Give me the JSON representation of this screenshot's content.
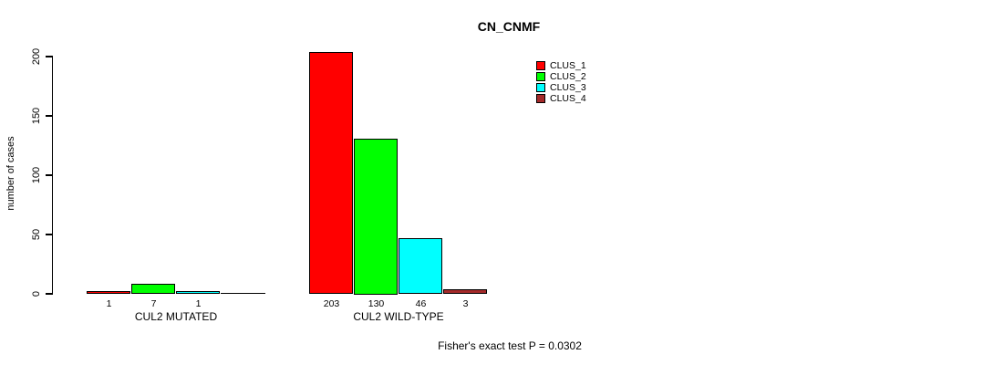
{
  "chart_data": {
    "type": "bar",
    "title": "CN_CNMF",
    "ylabel": "number of cases",
    "xlabel": "",
    "ylim": [
      0,
      200
    ],
    "yticks": [
      0,
      50,
      100,
      150,
      200
    ],
    "grid": false,
    "legend_position": "top-right",
    "categories": [
      "CUL2 MUTATED",
      "CUL2 WILD-TYPE"
    ],
    "series": [
      {
        "name": "CLUS_1",
        "color": "#ff0000",
        "values": [
          1,
          203
        ]
      },
      {
        "name": "CLUS_2",
        "color": "#00ff00",
        "values": [
          7,
          130
        ]
      },
      {
        "name": "CLUS_3",
        "color": "#00ffff",
        "values": [
          1,
          46
        ]
      },
      {
        "name": "CLUS_4",
        "color": "#a52a2a",
        "values": [
          0,
          3
        ]
      }
    ],
    "bar_value_labels": [
      [
        "1",
        "7",
        "1",
        ""
      ],
      [
        "203",
        "130",
        "46",
        "3"
      ]
    ],
    "annotation": "Fisher's exact test P = 0.0302"
  }
}
